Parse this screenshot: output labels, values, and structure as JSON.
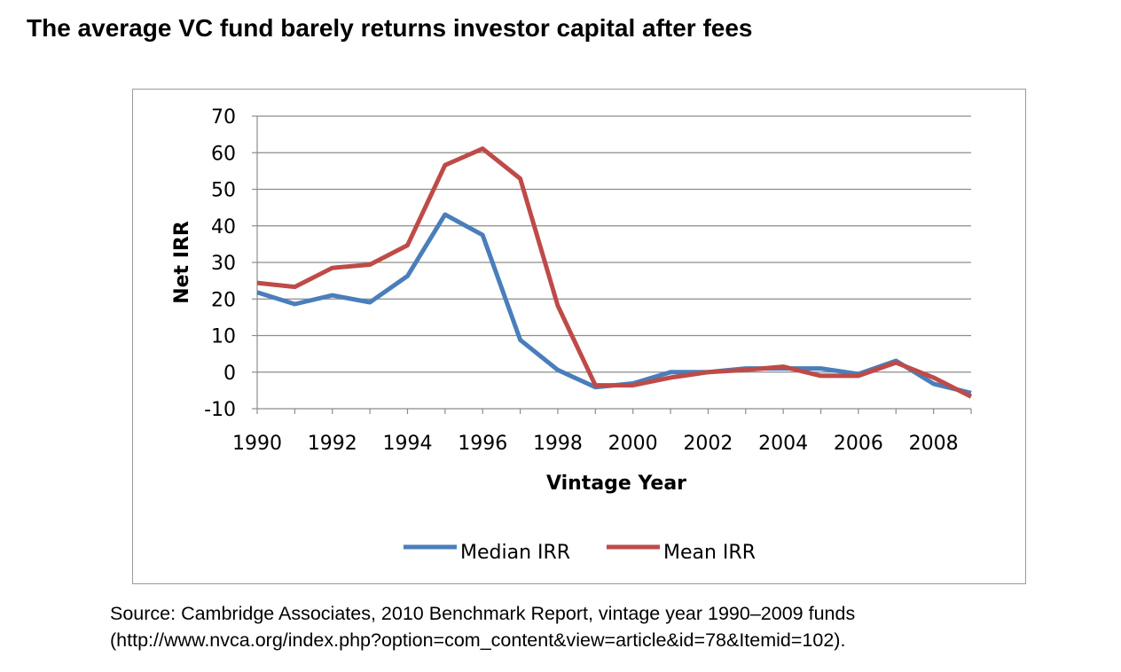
{
  "title": "The average VC fund barely returns investor capital after fees",
  "source": {
    "line1": "Source: Cambridge Associates, 2010 Benchmark Report, vintage year 1990–2009 funds",
    "line2": "(http://www.nvca.org/index.php?option=com_content&view=article&id=78&Itemid=102)."
  },
  "chart_data": {
    "type": "line",
    "title": "",
    "xlabel": "Vintage Year",
    "ylabel": "Net IRR",
    "x": [
      1990,
      1991,
      1992,
      1993,
      1994,
      1995,
      1996,
      1997,
      1998,
      1999,
      2000,
      2001,
      2002,
      2003,
      2004,
      2005,
      2006,
      2007,
      2008,
      2009
    ],
    "x_tick_labels": [
      "1990",
      "1992",
      "1994",
      "1996",
      "1998",
      "2000",
      "2002",
      "2004",
      "2006",
      "2008"
    ],
    "xlim": [
      1990,
      2009
    ],
    "ylim": [
      -10,
      70
    ],
    "y_ticks": [
      -10,
      0,
      10,
      20,
      30,
      40,
      50,
      60,
      70
    ],
    "y_tick_labels": [
      "-10",
      "0",
      "10",
      "20",
      "30",
      "40",
      "50",
      "60",
      "70"
    ],
    "grid": true,
    "legend_position": "bottom",
    "series": [
      {
        "name": "Median IRR",
        "color": "#4a7ebb",
        "values": [
          21.8,
          18.6,
          21.0,
          19.1,
          26.3,
          43.1,
          37.5,
          8.8,
          0.6,
          -4.1,
          -3.1,
          0.0,
          0.0,
          1.0,
          1.0,
          1.0,
          -0.5,
          3.1,
          -3.2,
          -5.7
        ]
      },
      {
        "name": "Mean IRR",
        "color": "#be4b48",
        "values": [
          24.4,
          23.3,
          28.5,
          29.4,
          34.7,
          56.6,
          61.1,
          52.9,
          18.2,
          -3.6,
          -3.6,
          -1.5,
          0.0,
          0.6,
          1.5,
          -1.0,
          -1.0,
          2.6,
          -1.5,
          -6.7
        ]
      }
    ]
  }
}
